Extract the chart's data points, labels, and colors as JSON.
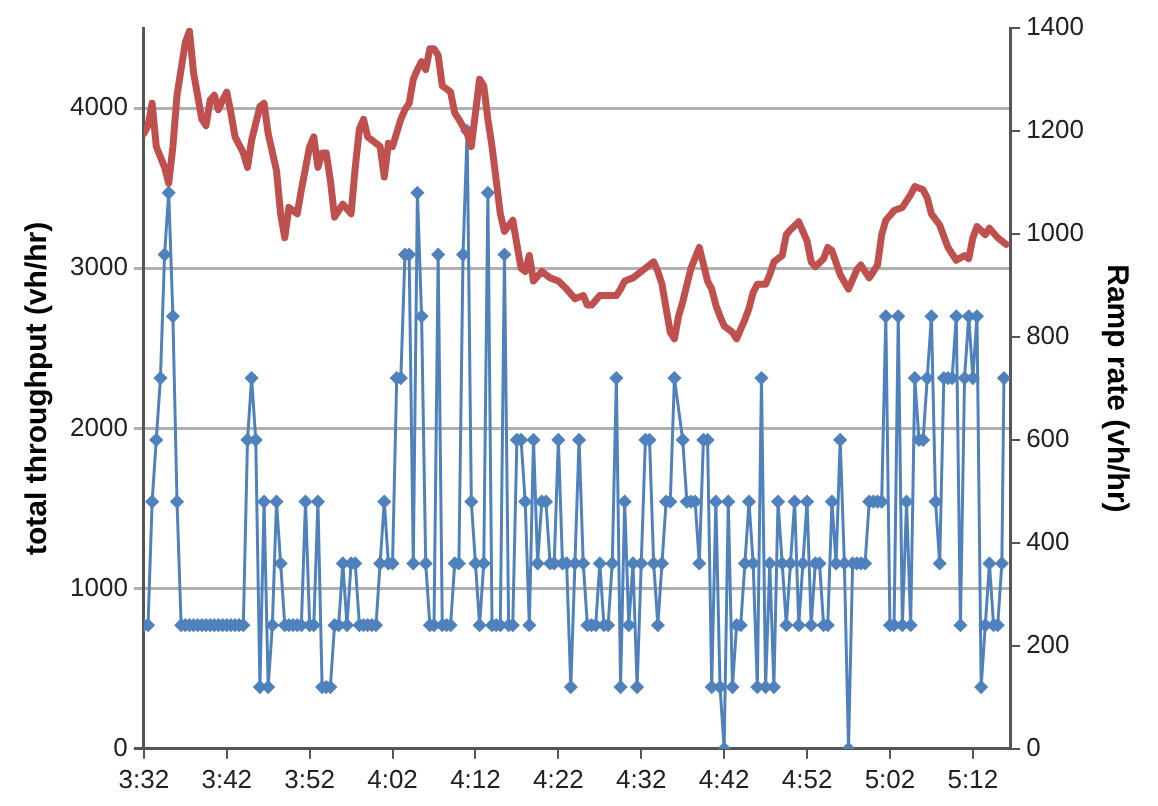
{
  "chart_data": {
    "type": "line",
    "ylabel": "total throughput (vh/hr)",
    "y2label": "Ramp rate (vh/hr)",
    "xlim": [
      3.5333,
      5.275
    ],
    "xticks": [
      {
        "value": 3.5333,
        "label": "3:32"
      },
      {
        "value": 3.7,
        "label": "3:42"
      },
      {
        "value": 3.8667,
        "label": "3:52"
      },
      {
        "value": 4.0333,
        "label": "4:02"
      },
      {
        "value": 4.2,
        "label": "4:12"
      },
      {
        "value": 4.3667,
        "label": "4:22"
      },
      {
        "value": 4.5333,
        "label": "4:32"
      },
      {
        "value": 4.7,
        "label": "4:42"
      },
      {
        "value": 4.8667,
        "label": "4:52"
      },
      {
        "value": 5.0333,
        "label": "5:02"
      },
      {
        "value": 5.2,
        "label": "5:12"
      }
    ],
    "ylim": [
      0,
      4500
    ],
    "yticks": [
      0,
      1000,
      2000,
      3000,
      4000
    ],
    "y2lim": [
      0,
      1400
    ],
    "y2ticks": [
      0,
      200,
      400,
      600,
      800,
      1000,
      1200,
      1400
    ],
    "grid": "y",
    "legend": false,
    "line_style": "solid",
    "series": [
      {
        "color": "#c0504d",
        "marker": "none",
        "axis": "y",
        "x": [
          3.5333,
          3.5417,
          3.55,
          3.5583,
          3.575,
          3.5833,
          3.5917,
          3.6,
          3.6167,
          3.625,
          3.6333,
          3.65,
          3.6583,
          3.6667,
          3.675,
          3.6833,
          3.6917,
          3.7,
          3.7083,
          3.7167,
          3.7333,
          3.7417,
          3.75,
          3.7667,
          3.775,
          3.7833,
          3.8,
          3.8083,
          3.8167,
          3.825,
          3.8417,
          3.85,
          3.8667,
          3.875,
          3.8833,
          3.8917,
          3.9,
          3.9083,
          3.9167,
          3.9333,
          3.95,
          3.9583,
          3.9667,
          3.975,
          3.9833,
          4.0,
          4.0083,
          4.0167,
          4.025,
          4.0333,
          4.05,
          4.0583,
          4.0667,
          4.075,
          4.0833,
          4.0917,
          4.1,
          4.1083,
          4.1167,
          4.125,
          4.1333,
          4.15,
          4.1583,
          4.1667,
          4.1833,
          4.1917,
          4.2,
          4.2083,
          4.2167,
          4.225,
          4.2333,
          4.2417,
          4.25,
          4.2583,
          4.275,
          4.2833,
          4.2917,
          4.3,
          4.3083,
          4.3167,
          4.3333,
          4.35,
          4.3667,
          4.3833,
          4.4,
          4.4167,
          4.425,
          4.4333,
          4.45,
          4.4667,
          4.4833,
          4.4917,
          4.5,
          4.5167,
          4.5333,
          4.55,
          4.5583,
          4.5667,
          4.575,
          4.5833,
          4.5917,
          4.6,
          4.6083,
          4.6167,
          4.6333,
          4.65,
          4.6667,
          4.675,
          4.6833,
          4.6917,
          4.7,
          4.7167,
          4.725,
          4.7333,
          4.7417,
          4.75,
          4.7583,
          4.7667,
          4.7833,
          4.7917,
          4.8,
          4.8167,
          4.825,
          4.8333,
          4.85,
          4.8667,
          4.875,
          4.8833,
          4.9,
          4.9083,
          4.9167,
          4.9333,
          4.95,
          4.9667,
          4.975,
          4.9917,
          5.0083,
          5.0167,
          5.025,
          5.0417,
          5.0583,
          5.075,
          5.0833,
          5.1,
          5.1083,
          5.1167,
          5.1333,
          5.15,
          5.1667,
          5.1833,
          5.1917,
          5.2,
          5.2083,
          5.225,
          5.2333,
          5.25,
          5.2667
        ],
        "values": [
          3840,
          3890,
          4030,
          3760,
          3630,
          3530,
          3760,
          4080,
          4410,
          4480,
          4220,
          3930,
          3890,
          4050,
          4080,
          3990,
          4050,
          4100,
          3970,
          3820,
          3720,
          3630,
          3800,
          4010,
          4030,
          3840,
          3610,
          3340,
          3190,
          3380,
          3340,
          3490,
          3760,
          3820,
          3630,
          3720,
          3720,
          3550,
          3320,
          3400,
          3340,
          3630,
          3870,
          3930,
          3820,
          3780,
          3760,
          3570,
          3780,
          3760,
          3930,
          3990,
          4030,
          4180,
          4240,
          4290,
          4240,
          4370,
          4370,
          4330,
          4140,
          4100,
          3970,
          3930,
          3840,
          3760,
          3970,
          4180,
          4140,
          3930,
          3760,
          3550,
          3340,
          3230,
          3300,
          3150,
          3000,
          2980,
          3080,
          2920,
          2980,
          2940,
          2920,
          2870,
          2810,
          2830,
          2770,
          2770,
          2830,
          2830,
          2830,
          2870,
          2920,
          2940,
          2980,
          3020,
          3040,
          2980,
          2900,
          2750,
          2600,
          2560,
          2700,
          2790,
          3000,
          3130,
          2920,
          2870,
          2770,
          2700,
          2640,
          2600,
          2560,
          2620,
          2680,
          2750,
          2850,
          2900,
          2900,
          2960,
          3040,
          3080,
          3210,
          3240,
          3290,
          3170,
          3040,
          3010,
          3060,
          3130,
          3110,
          2960,
          2870,
          2990,
          3020,
          2940,
          3020,
          3210,
          3300,
          3360,
          3380,
          3460,
          3510,
          3490,
          3440,
          3340,
          3270,
          3130,
          3050,
          3080,
          3060,
          3190,
          3260,
          3210,
          3250,
          3190,
          3150
        ]
      },
      {
        "color": "#4f81bd",
        "marker": "diamond",
        "axis": "y2",
        "x": [
          3.5333,
          3.5417,
          3.55,
          3.5583,
          3.5667,
          3.575,
          3.5833,
          3.5917,
          3.6,
          3.6083,
          3.6167,
          3.625,
          3.6333,
          3.6417,
          3.65,
          3.6583,
          3.6667,
          3.675,
          3.6833,
          3.6917,
          3.7,
          3.7083,
          3.7167,
          3.725,
          3.7333,
          3.7417,
          3.75,
          3.7583,
          3.7667,
          3.775,
          3.7833,
          3.7917,
          3.8,
          3.8083,
          3.8167,
          3.825,
          3.8333,
          3.8417,
          3.85,
          3.8583,
          3.8667,
          3.875,
          3.8833,
          3.8917,
          3.9,
          3.9083,
          3.9167,
          3.925,
          3.9333,
          3.9417,
          3.95,
          3.9583,
          3.9667,
          3.975,
          3.9833,
          3.9917,
          4.0,
          4.0083,
          4.0167,
          4.025,
          4.0333,
          4.0417,
          4.05,
          4.0583,
          4.0667,
          4.075,
          4.0833,
          4.0917,
          4.1,
          4.1083,
          4.1167,
          4.125,
          4.1333,
          4.1417,
          4.15,
          4.1583,
          4.1667,
          4.175,
          4.1833,
          4.1917,
          4.2,
          4.2083,
          4.2167,
          4.225,
          4.2333,
          4.2417,
          4.25,
          4.2583,
          4.2667,
          4.275,
          4.2833,
          4.2917,
          4.3,
          4.3083,
          4.3167,
          4.325,
          4.3333,
          4.3417,
          4.35,
          4.3583,
          4.3667,
          4.375,
          4.3833,
          4.3917,
          4.4,
          4.4083,
          4.4167,
          4.425,
          4.4333,
          4.4417,
          4.45,
          4.4583,
          4.4667,
          4.475,
          4.4833,
          4.4917,
          4.5,
          4.5083,
          4.5167,
          4.525,
          4.5333,
          4.5417,
          4.55,
          4.5583,
          4.5667,
          4.575,
          4.5833,
          4.5917,
          4.6,
          4.6167,
          4.625,
          4.6333,
          4.6417,
          4.65,
          4.6583,
          4.6667,
          4.675,
          4.6833,
          4.6917,
          4.7,
          4.7083,
          4.7167,
          4.725,
          4.7333,
          4.7417,
          4.75,
          4.7583,
          4.7667,
          4.775,
          4.7833,
          4.7917,
          4.8,
          4.8083,
          4.8167,
          4.825,
          4.8333,
          4.8417,
          4.85,
          4.8583,
          4.8667,
          4.875,
          4.8833,
          4.8917,
          4.9,
          4.9083,
          4.9167,
          4.925,
          4.9333,
          4.9417,
          4.95,
          4.9583,
          4.9667,
          4.975,
          4.9833,
          4.9917,
          5.0,
          5.0083,
          5.0167,
          5.025,
          5.0333,
          5.0417,
          5.05,
          5.0583,
          5.0667,
          5.075,
          5.0833,
          5.0917,
          5.1,
          5.1083,
          5.1167,
          5.125,
          5.1333,
          5.1417,
          5.15,
          5.1583,
          5.1667,
          5.175,
          5.1833,
          5.1917,
          5.2,
          5.2083,
          5.2167,
          5.225,
          5.2333,
          5.2417,
          5.25,
          5.2583,
          5.2625
        ],
        "values": [
          240,
          240,
          480,
          600,
          720,
          960,
          1080,
          840,
          480,
          240,
          240,
          240,
          240,
          240,
          240,
          240,
          240,
          240,
          240,
          240,
          240,
          240,
          240,
          240,
          240,
          600,
          720,
          600,
          120,
          480,
          120,
          240,
          480,
          360,
          240,
          240,
          240,
          240,
          240,
          480,
          240,
          240,
          480,
          120,
          120,
          120,
          240,
          240,
          360,
          240,
          360,
          360,
          240,
          240,
          240,
          240,
          240,
          360,
          480,
          360,
          360,
          720,
          720,
          960,
          960,
          360,
          1080,
          840,
          360,
          240,
          240,
          960,
          240,
          240,
          240,
          360,
          360,
          960,
          1200,
          480,
          360,
          240,
          360,
          1080,
          240,
          240,
          240,
          960,
          240,
          240,
          600,
          600,
          480,
          240,
          600,
          360,
          480,
          480,
          360,
          360,
          600,
          360,
          360,
          120,
          360,
          600,
          360,
          240,
          240,
          240,
          360,
          240,
          240,
          360,
          720,
          120,
          480,
          240,
          360,
          120,
          360,
          600,
          600,
          360,
          240,
          360,
          480,
          480,
          720,
          600,
          480,
          480,
          480,
          360,
          600,
          600,
          120,
          480,
          120,
          0,
          480,
          120,
          240,
          240,
          360,
          480,
          360,
          120,
          720,
          120,
          360,
          120,
          480,
          360,
          240,
          360,
          480,
          240,
          360,
          480,
          240,
          360,
          360,
          240,
          240,
          480,
          360,
          600,
          360,
          0,
          360,
          360,
          360,
          360,
          480,
          480,
          480,
          480,
          840,
          240,
          240,
          840,
          240,
          480,
          240,
          720,
          600,
          600,
          720,
          840,
          480,
          360,
          720,
          720,
          720,
          840,
          240,
          720,
          840,
          720,
          840,
          120,
          240,
          360,
          240,
          240,
          360,
          720
        ]
      }
    ]
  }
}
